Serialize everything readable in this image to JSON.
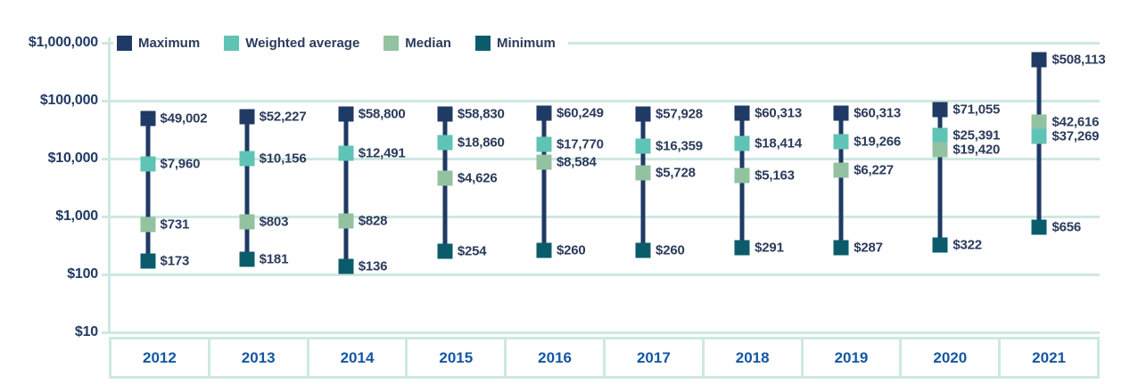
{
  "chart_data": {
    "type": "scatter",
    "title": "",
    "xlabel": "",
    "ylabel": "",
    "y_scale": "log",
    "ylim": [
      10,
      1000000
    ],
    "grid": true,
    "legend_position": "top-left",
    "y_ticks": [
      {
        "label": "$1,000,000",
        "value": 1000000
      },
      {
        "label": "$100,000",
        "value": 100000
      },
      {
        "label": "$10,000",
        "value": 10000
      },
      {
        "label": "$1,000",
        "value": 1000
      },
      {
        "label": "$100",
        "value": 100
      },
      {
        "label": "$10",
        "value": 10
      }
    ],
    "categories": [
      "2012",
      "2013",
      "2014",
      "2015",
      "2016",
      "2017",
      "2018",
      "2019",
      "2020",
      "2021"
    ],
    "series": [
      {
        "name": "Maximum",
        "color": "#1f3a64",
        "values": [
          49002,
          52227,
          58800,
          58830,
          60249,
          57928,
          60313,
          60313,
          71055,
          508113
        ],
        "labels": [
          "$49,002",
          "$52,227",
          "$58,800",
          "$58,830",
          "$60,249",
          "$57,928",
          "$60,313",
          "$60,313",
          "$71,055",
          "$508,113"
        ]
      },
      {
        "name": "Weighted average",
        "color": "#5fc4b5",
        "values": [
          7960,
          10156,
          12491,
          18860,
          17770,
          16359,
          18414,
          19266,
          25391,
          37269
        ],
        "labels": [
          "$7,960",
          "$10,156",
          "$12,491",
          "$18,860",
          "$17,770",
          "$16,359",
          "$18,414",
          "$19,266",
          "$25,391",
          "$37,269"
        ]
      },
      {
        "name": "Median",
        "color": "#92c2a0",
        "values": [
          731,
          803,
          828,
          4626,
          8584,
          5728,
          5163,
          6227,
          19420,
          42616
        ],
        "labels": [
          "$731",
          "$803",
          "$828",
          "$4,626",
          "$8,584",
          "$5,728",
          "$5,163",
          "$6,227",
          "$19,420",
          "$42,616"
        ]
      },
      {
        "name": "Minimum",
        "color": "#0a5c6b",
        "values": [
          173,
          181,
          136,
          254,
          260,
          260,
          291,
          287,
          322,
          656
        ],
        "labels": [
          "$173",
          "$181",
          "$136",
          "$254",
          "$260",
          "$260",
          "$291",
          "$287",
          "$322",
          "$656"
        ]
      }
    ]
  },
  "colors": {
    "gridline": "#cde8e2",
    "connector": "#1f3a64",
    "y_tick_text": "#203a64",
    "year_text": "#1456a4",
    "marker_label_text": "#2b3b5c"
  }
}
